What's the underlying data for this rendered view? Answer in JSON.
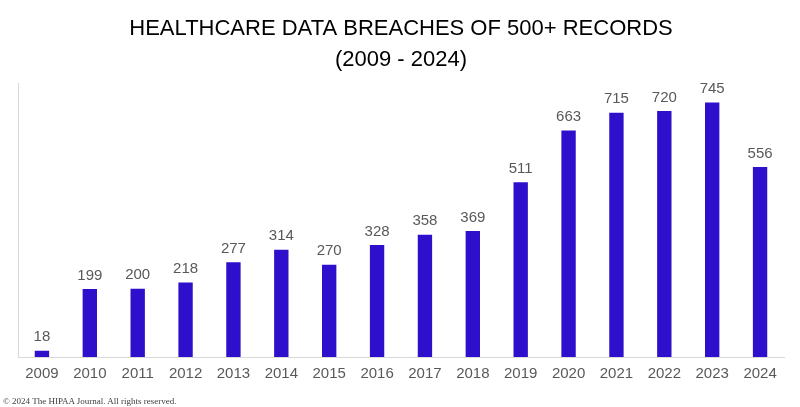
{
  "chart_data": {
    "type": "bar",
    "title": [
      "HEALTHCARE DATA BREACHES OF 500+ RECORDS",
      "(2009 - 2024)"
    ],
    "categories": [
      "2009",
      "2010",
      "2011",
      "2012",
      "2013",
      "2014",
      "2015",
      "2016",
      "2017",
      "2018",
      "2019",
      "2020",
      "2021",
      "2022",
      "2023",
      "2024"
    ],
    "values": [
      18,
      199,
      200,
      218,
      277,
      314,
      270,
      328,
      358,
      369,
      511,
      663,
      715,
      720,
      745,
      556
    ],
    "color": "#2e0fcc",
    "ylim": [
      0,
      800
    ],
    "grid": false,
    "data_labels": true,
    "tick_labels": "x",
    "annotations": [
      "© 2024 The HIPAA Journal. All rights reserved."
    ]
  }
}
